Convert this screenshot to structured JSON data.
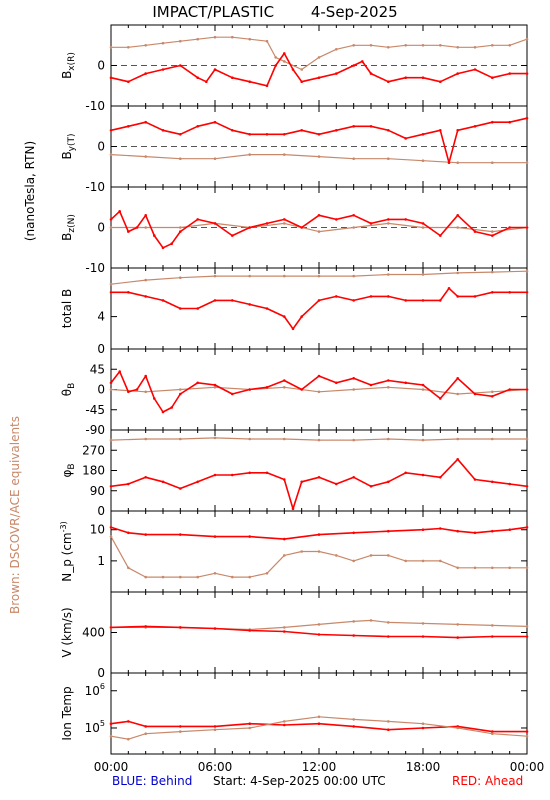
{
  "header": {
    "instrument": "IMPACT/PLASTIC",
    "date": "4-Sep-2025"
  },
  "side_labels": {
    "units": "(nanoTesla, RTN)",
    "equivalents": "Brown: DSCOVR/ACE equivalents"
  },
  "footer": {
    "blue": "BLUE: Behind",
    "start": "Start:   4-Sep-2025 00:00 UTC",
    "red": "RED: Ahead"
  },
  "colors": {
    "ahead": "#ff0000",
    "equivalent": "#c8886a",
    "behind": "#0000cc"
  },
  "chart_data": {
    "type": "line",
    "x_ticks": [
      "00:00",
      "06:00",
      "12:00",
      "18:00",
      "00:00"
    ],
    "x_range_hours": [
      0,
      24
    ],
    "panels": [
      {
        "id": "bx",
        "ylabel": "B_x(R)",
        "ylim": [
          -10,
          10
        ],
        "ytick_values": [
          -10,
          0
        ],
        "ytick_labels": [
          "-10",
          "0"
        ],
        "zero_line": true,
        "series": [
          {
            "color": "equivalent",
            "x": [
              0,
              1,
              2,
              3,
              4,
              5,
              6,
              7,
              8,
              9,
              9.5,
              10,
              11,
              12,
              13,
              14,
              15,
              16,
              17,
              18,
              19,
              20,
              21,
              22,
              23,
              24
            ],
            "y": [
              4.5,
              4.5,
              5,
              5.5,
              6,
              6.5,
              7,
              7,
              6.5,
              6,
              2,
              1,
              -1,
              2,
              4,
              5,
              5,
              4.5,
              5,
              5,
              5,
              4.5,
              4.5,
              5,
              5,
              6.5
            ]
          },
          {
            "color": "ahead",
            "x": [
              0,
              1,
              2,
              3,
              4,
              5,
              5.5,
              6,
              7,
              8,
              9,
              9.5,
              10,
              10.5,
              11,
              12,
              13,
              14,
              14.5,
              15,
              16,
              17,
              18,
              19,
              20,
              21,
              22,
              23,
              24
            ],
            "y": [
              -3,
              -4,
              -2,
              -1,
              0,
              -3,
              -4,
              -1,
              -3,
              -4,
              -5,
              0,
              3,
              -1,
              -4,
              -3,
              -2,
              0,
              1,
              -2,
              -4,
              -3,
              -3,
              -4,
              -2,
              -1,
              -3,
              -2,
              -2
            ]
          }
        ]
      },
      {
        "id": "by",
        "ylabel": "B_y(T)",
        "ylim": [
          -10,
          10
        ],
        "ytick_values": [
          -10,
          0
        ],
        "ytick_labels": [
          "-10",
          "0"
        ],
        "zero_line": true,
        "series": [
          {
            "color": "equivalent",
            "x": [
              0,
              2,
              4,
              6,
              8,
              10,
              12,
              14,
              16,
              18,
              20,
              22,
              24
            ],
            "y": [
              -2,
              -2.5,
              -3,
              -3,
              -2,
              -2,
              -2.5,
              -3,
              -3,
              -3.5,
              -4,
              -4,
              -4
            ]
          },
          {
            "color": "ahead",
            "x": [
              0,
              1,
              2,
              3,
              4,
              5,
              6,
              7,
              8,
              9,
              10,
              11,
              12,
              13,
              14,
              15,
              16,
              17,
              18,
              19,
              19.5,
              20,
              21,
              22,
              23,
              24
            ],
            "y": [
              4,
              5,
              6,
              4,
              3,
              5,
              6,
              4,
              3,
              3,
              3,
              4,
              3,
              4,
              5,
              5,
              4,
              2,
              3,
              4,
              -4,
              4,
              5,
              6,
              6,
              7
            ]
          }
        ]
      },
      {
        "id": "bz",
        "ylabel": "B_z(N)",
        "ylim": [
          -10,
          10
        ],
        "ytick_values": [
          -10,
          0
        ],
        "ytick_labels": [
          "-10",
          "0"
        ],
        "zero_line": true,
        "series": [
          {
            "color": "equivalent",
            "x": [
              0,
              2,
              4,
              6,
              8,
              10,
              12,
              14,
              16,
              18,
              20,
              22,
              24
            ],
            "y": [
              0,
              0,
              0,
              1,
              0,
              1,
              -1,
              0,
              1,
              0,
              0,
              -1,
              0
            ]
          },
          {
            "color": "ahead",
            "x": [
              0,
              0.5,
              1,
              1.5,
              2,
              2.5,
              3,
              3.5,
              4,
              5,
              6,
              7,
              8,
              9,
              10,
              11,
              12,
              13,
              14,
              15,
              16,
              17,
              18,
              19,
              20,
              21,
              22,
              23,
              24
            ],
            "y": [
              2,
              4,
              -1,
              0,
              3,
              -2,
              -5,
              -4,
              -1,
              2,
              1,
              -2,
              0,
              1,
              2,
              0,
              3,
              2,
              3,
              1,
              2,
              2,
              1,
              -2,
              3,
              -1,
              -2,
              0,
              0
            ]
          }
        ]
      },
      {
        "id": "total",
        "ylabel": "total B",
        "ylim": [
          0,
          10
        ],
        "ytick_values": [
          0,
          4,
          10
        ],
        "ytick_labels": [
          "0",
          "4",
          ""
        ],
        "zero_line": false,
        "series": [
          {
            "color": "equivalent",
            "x": [
              0,
              2,
              4,
              6,
              8,
              10,
              12,
              14,
              16,
              18,
              20,
              22,
              24
            ],
            "y": [
              8,
              8.5,
              8.8,
              9,
              9,
              9,
              9,
              9,
              9.2,
              9.2,
              9.4,
              9.5,
              9.6
            ]
          },
          {
            "color": "ahead",
            "x": [
              0,
              1,
              2,
              3,
              4,
              5,
              6,
              7,
              8,
              9,
              10,
              10.5,
              11,
              12,
              13,
              14,
              15,
              16,
              17,
              18,
              19,
              19.5,
              20,
              21,
              22,
              23,
              24
            ],
            "y": [
              7,
              7,
              6.5,
              6,
              5,
              5,
              6,
              6,
              5.5,
              5,
              4,
              2.5,
              4,
              6,
              6.5,
              6,
              6.5,
              6.5,
              6,
              6,
              6,
              7.5,
              6.5,
              6.5,
              7,
              7,
              7
            ]
          }
        ]
      },
      {
        "id": "theta",
        "ylabel": "θ_B",
        "ylim": [
          -90,
          90
        ],
        "ytick_values": [
          -90,
          -45,
          0,
          45
        ],
        "ytick_labels": [
          "-90",
          "-45",
          "0",
          "45"
        ],
        "zero_line": false,
        "series": [
          {
            "color": "equivalent",
            "x": [
              0,
              2,
              4,
              6,
              8,
              10,
              12,
              14,
              16,
              18,
              20,
              22,
              24
            ],
            "y": [
              0,
              -5,
              0,
              5,
              0,
              5,
              -5,
              0,
              5,
              0,
              -10,
              -5,
              0
            ]
          },
          {
            "color": "ahead",
            "x": [
              0,
              0.5,
              1,
              1.5,
              2,
              2.5,
              3,
              3.5,
              4,
              5,
              6,
              7,
              8,
              9,
              10,
              11,
              12,
              13,
              14,
              15,
              16,
              17,
              18,
              19,
              20,
              21,
              22,
              23,
              24
            ],
            "y": [
              15,
              40,
              -5,
              0,
              30,
              -20,
              -50,
              -40,
              -10,
              15,
              10,
              -10,
              0,
              5,
              20,
              0,
              30,
              15,
              25,
              10,
              20,
              15,
              10,
              -20,
              25,
              -10,
              -15,
              0,
              0
            ]
          }
        ]
      },
      {
        "id": "phi",
        "ylabel": "φ_B",
        "ylim": [
          0,
          360
        ],
        "ytick_values": [
          0,
          90,
          180,
          270
        ],
        "ytick_labels": [
          "0",
          "90",
          "180",
          "270"
        ],
        "zero_line": false,
        "series": [
          {
            "color": "equivalent",
            "x": [
              0,
              2,
              4,
              6,
              8,
              10,
              12,
              14,
              16,
              18,
              20,
              22,
              24
            ],
            "y": [
              315,
              320,
              320,
              325,
              320,
              320,
              315,
              315,
              320,
              315,
              320,
              320,
              320
            ]
          },
          {
            "color": "ahead",
            "x": [
              0,
              1,
              2,
              3,
              4,
              5,
              6,
              7,
              8,
              9,
              10,
              10.5,
              11,
              12,
              13,
              14,
              15,
              16,
              17,
              18,
              19,
              20,
              21,
              22,
              23,
              24
            ],
            "y": [
              110,
              120,
              150,
              130,
              100,
              130,
              160,
              160,
              170,
              170,
              140,
              10,
              130,
              150,
              120,
              150,
              110,
              130,
              170,
              160,
              150,
              230,
              140,
              130,
              120,
              110
            ]
          }
        ]
      },
      {
        "id": "np",
        "ylabel": "N_p (cm^-3)",
        "ylim_log": [
          0.1,
          40
        ],
        "ytick_values": [
          1,
          10
        ],
        "ytick_labels": [
          "1",
          "10"
        ],
        "zero_line": false,
        "series": [
          {
            "color": "ahead",
            "x": [
              0,
              1,
              2,
              4,
              6,
              8,
              10,
              12,
              14,
              16,
              18,
              19,
              20,
              21,
              22,
              23,
              24
            ],
            "y": [
              12,
              8,
              7,
              7,
              6,
              6,
              5,
              7,
              8,
              9,
              10,
              11,
              9,
              8,
              9,
              10,
              12
            ]
          },
          {
            "color": "equivalent",
            "x": [
              0,
              1,
              2,
              3,
              4,
              5,
              6,
              7,
              8,
              9,
              10,
              11,
              12,
              13,
              14,
              15,
              16,
              17,
              18,
              19,
              20,
              21,
              22,
              23,
              24
            ],
            "y": [
              6,
              0.6,
              0.3,
              0.3,
              0.3,
              0.3,
              0.4,
              0.3,
              0.3,
              0.4,
              1.5,
              2,
              2,
              1.5,
              1,
              1.5,
              1.5,
              1,
              1,
              1,
              0.6,
              0.6,
              0.6,
              0.6,
              0.6
            ]
          }
        ]
      },
      {
        "id": "v",
        "ylabel": "V (km/s)",
        "ylim": [
          0,
          800
        ],
        "ytick_values": [
          0,
          400
        ],
        "ytick_labels": [
          "0",
          "400"
        ],
        "zero_line": false,
        "series": [
          {
            "color": "equivalent",
            "x": [
              0,
              2,
              4,
              6,
              8,
              10,
              12,
              14,
              15,
              16,
              18,
              20,
              22,
              24
            ],
            "y": [
              450,
              450,
              450,
              440,
              430,
              450,
              480,
              510,
              520,
              500,
              490,
              480,
              470,
              460
            ]
          },
          {
            "color": "ahead",
            "x": [
              0,
              2,
              4,
              6,
              8,
              10,
              12,
              14,
              16,
              18,
              20,
              22,
              24
            ],
            "y": [
              450,
              460,
              450,
              440,
              420,
              410,
              380,
              370,
              360,
              360,
              350,
              360,
              360
            ]
          }
        ]
      },
      {
        "id": "temp",
        "ylabel": "Ion Temp",
        "ylim_log": [
          20000,
          3000000
        ],
        "ytick_values": [
          100000,
          1000000
        ],
        "ytick_labels": [
          "10^5",
          "10^6"
        ],
        "zero_line": false,
        "series": [
          {
            "color": "ahead",
            "x": [
              0,
              1,
              2,
              4,
              6,
              8,
              10,
              12,
              14,
              16,
              18,
              20,
              22,
              24
            ],
            "y": [
              130000,
              150000,
              110000,
              110000,
              110000,
              130000,
              120000,
              130000,
              110000,
              90000,
              100000,
              110000,
              80000,
              80000
            ]
          },
          {
            "color": "equivalent",
            "x": [
              0,
              1,
              2,
              4,
              6,
              8,
              10,
              12,
              14,
              16,
              18,
              20,
              22,
              24
            ],
            "y": [
              60000,
              50000,
              70000,
              80000,
              90000,
              100000,
              150000,
              200000,
              170000,
              150000,
              130000,
              100000,
              70000,
              60000
            ]
          }
        ]
      }
    ]
  }
}
